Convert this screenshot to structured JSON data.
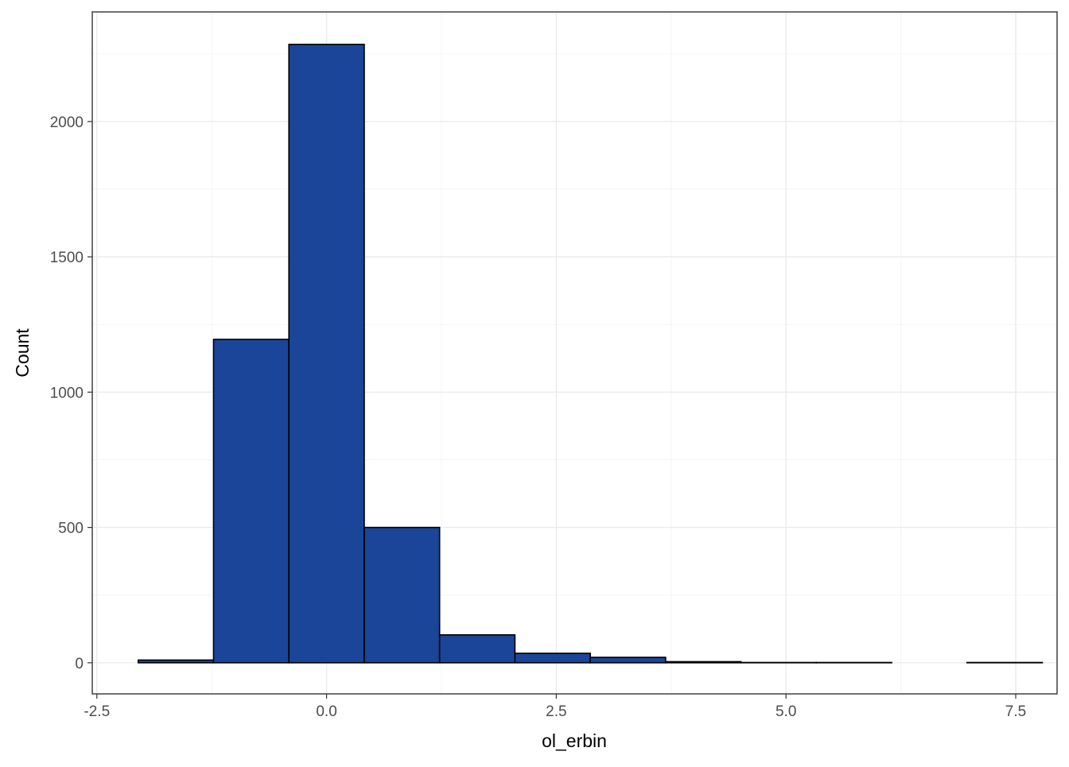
{
  "chart_data": {
    "type": "bar",
    "subtype": "histogram",
    "xlabel": "ol_erbin",
    "ylabel": "Count",
    "xlim": [
      -2.55,
      7.95
    ],
    "ylim": [
      -115,
      2405
    ],
    "x_ticks": [
      {
        "value": -2.5,
        "label": "-2.5"
      },
      {
        "value": 0.0,
        "label": "0.0"
      },
      {
        "value": 2.5,
        "label": "2.5"
      },
      {
        "value": 5.0,
        "label": "5.0"
      },
      {
        "value": 7.5,
        "label": "7.5"
      }
    ],
    "y_ticks": [
      {
        "value": 0,
        "label": "0"
      },
      {
        "value": 500,
        "label": "500"
      },
      {
        "value": 1000,
        "label": "1000"
      },
      {
        "value": 1500,
        "label": "1500"
      },
      {
        "value": 2000,
        "label": "2000"
      }
    ],
    "bins": [
      {
        "x_start": -2.05,
        "x_end": -1.23,
        "count": 10
      },
      {
        "x_start": -1.23,
        "x_end": -0.41,
        "count": 1195
      },
      {
        "x_start": -0.41,
        "x_end": 0.41,
        "count": 2285
      },
      {
        "x_start": 0.41,
        "x_end": 1.23,
        "count": 500
      },
      {
        "x_start": 1.23,
        "x_end": 2.05,
        "count": 103
      },
      {
        "x_start": 2.05,
        "x_end": 2.87,
        "count": 35
      },
      {
        "x_start": 2.87,
        "x_end": 3.69,
        "count": 20
      },
      {
        "x_start": 3.69,
        "x_end": 4.51,
        "count": 4
      },
      {
        "x_start": 4.51,
        "x_end": 5.33,
        "count": 1
      },
      {
        "x_start": 5.33,
        "x_end": 6.15,
        "count": 1
      },
      {
        "x_start": 6.15,
        "x_end": 6.97,
        "count": 0
      },
      {
        "x_start": 6.97,
        "x_end": 7.79,
        "count": 1
      }
    ],
    "bar_fill": "#1a4599",
    "bar_outline": "#000000",
    "panel_border": "#333333",
    "grid": true,
    "legend": "none"
  }
}
